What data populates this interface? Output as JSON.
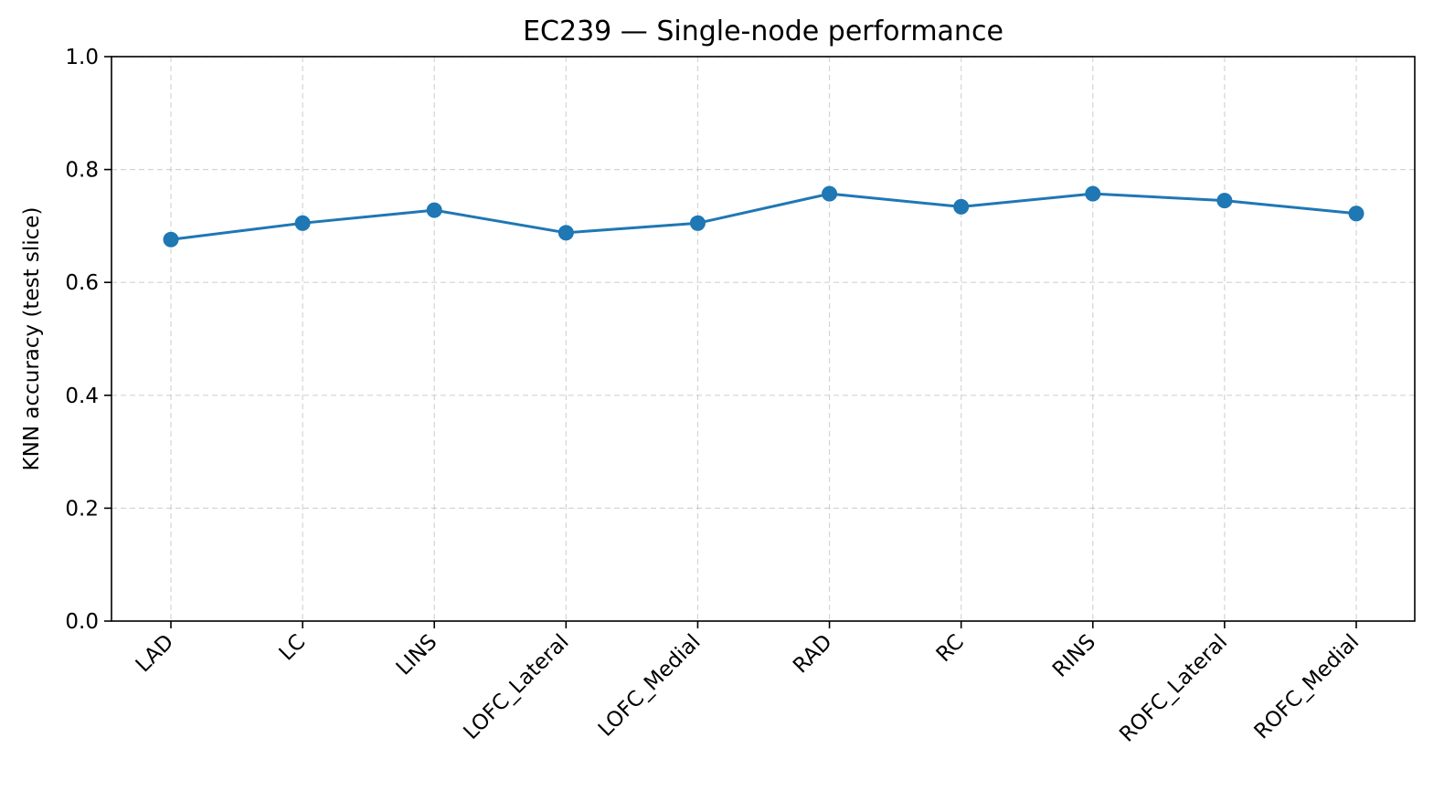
{
  "chart_data": {
    "type": "line",
    "title": "EC239 — Single-node performance",
    "xlabel": "",
    "ylabel": "KNN accuracy (test slice)",
    "categories": [
      "LAD",
      "LC",
      "LINS",
      "LOFC_Lateral",
      "LOFC_Medial",
      "RAD",
      "RC",
      "RINS",
      "ROFC_Lateral",
      "ROFC_Medial"
    ],
    "series": [
      {
        "values": [
          0.676,
          0.705,
          0.728,
          0.688,
          0.705,
          0.757,
          0.734,
          0.757,
          0.745,
          0.722
        ],
        "color": "#1f77b4"
      }
    ],
    "ylim": [
      0,
      1
    ],
    "yticks": [
      0.0,
      0.2,
      0.4,
      0.6,
      0.8,
      1.0
    ],
    "ytick_labels": [
      "0.0",
      "0.2",
      "0.4",
      "0.6",
      "0.8",
      "1.0"
    ],
    "grid": true,
    "legend": "none"
  }
}
